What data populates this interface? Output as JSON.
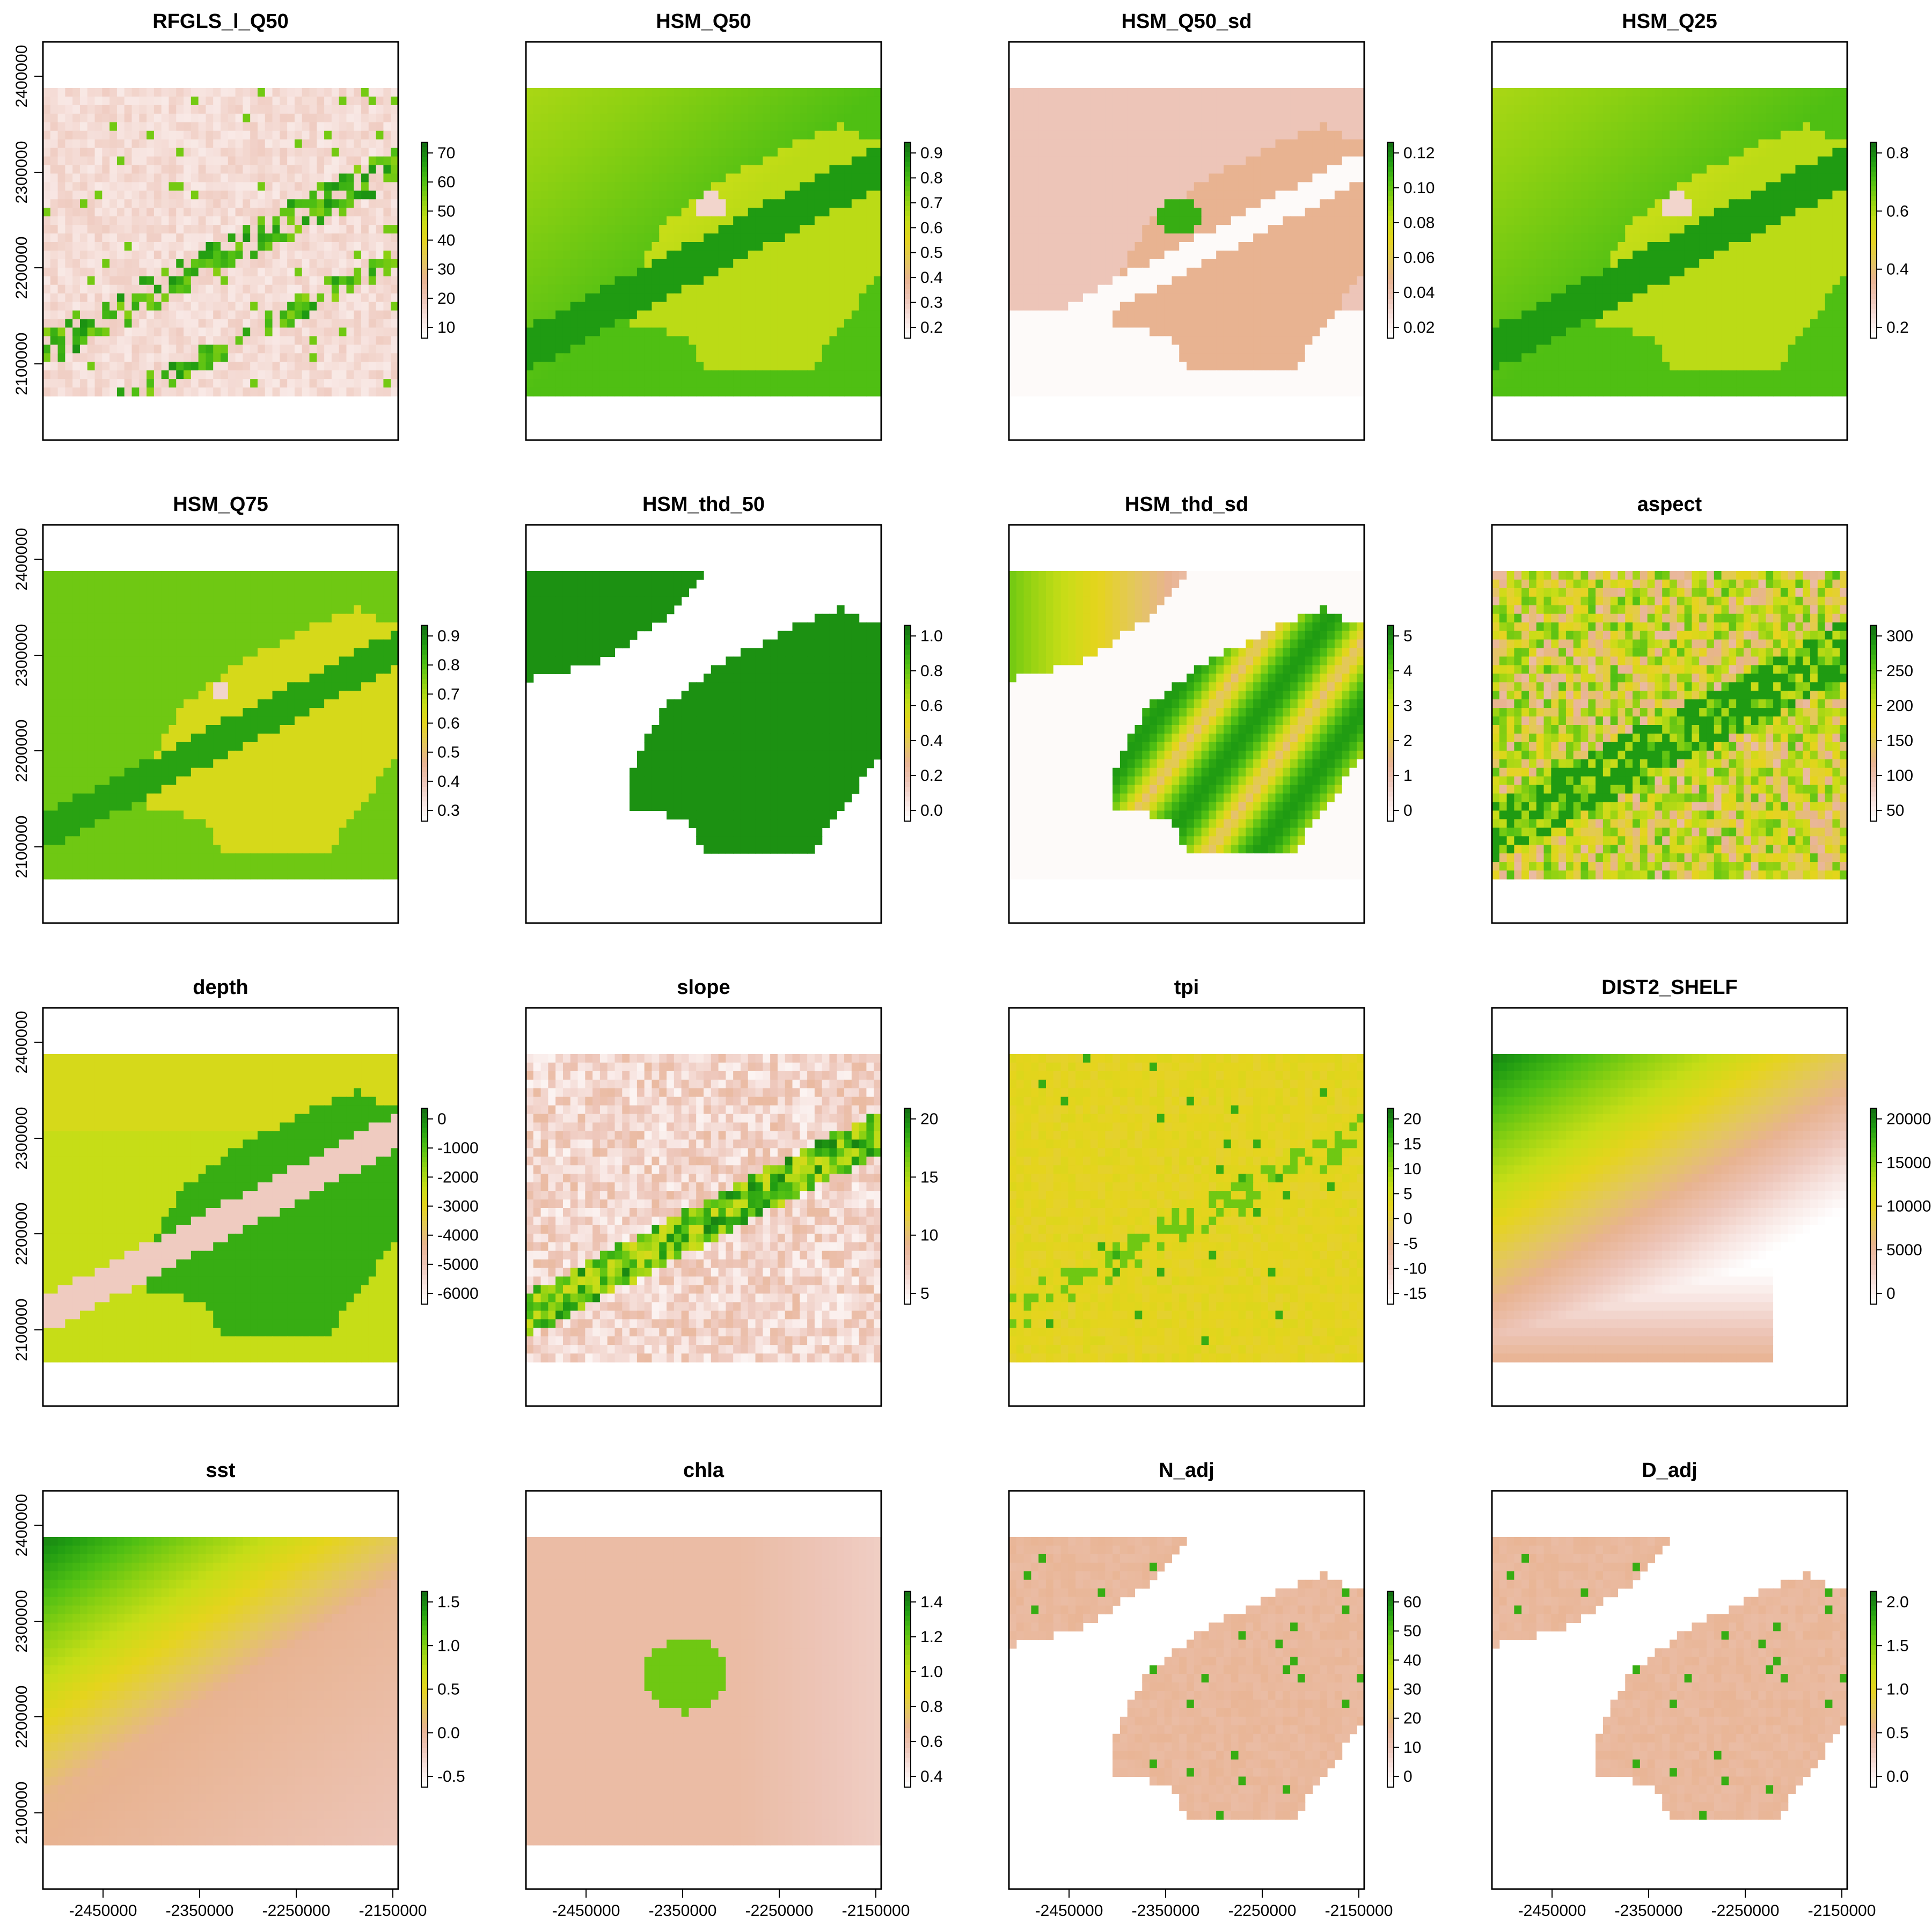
{
  "colors": {
    "ramp": [
      "#ffffff",
      "#f7e4e0",
      "#edc5b8",
      "#e8b391",
      "#e3c85a",
      "#e5d41d",
      "#c6dd17",
      "#8fd112",
      "#4fbf13",
      "#1f9b12",
      "#126b12"
    ],
    "na": "#ffffff",
    "frame": "#000000"
  },
  "axes": {
    "x_ticks": [
      "-2450000",
      "-2350000",
      "-2250000",
      "-2150000"
    ],
    "y_ticks": [
      "2100000",
      "2200000",
      "2300000",
      "2400000"
    ]
  },
  "chart_data": [
    {
      "type": "heatmap",
      "title": "RFGLS_l_Q50",
      "legend_ticks": [
        "10",
        "20",
        "30",
        "40",
        "50",
        "60",
        "70"
      ],
      "pattern": "sparse-ridge"
    },
    {
      "type": "heatmap",
      "title": "HSM_Q50",
      "legend_ticks": [
        "0.2",
        "0.3",
        "0.4",
        "0.5",
        "0.6",
        "0.7",
        "0.8",
        "0.9"
      ],
      "pattern": "smooth-habitat"
    },
    {
      "type": "heatmap",
      "title": "HSM_Q50_sd",
      "legend_ticks": [
        "0.02",
        "0.04",
        "0.06",
        "0.08",
        "0.10",
        "0.12"
      ],
      "pattern": "sd-habitat"
    },
    {
      "type": "heatmap",
      "title": "HSM_Q25",
      "legend_ticks": [
        "0.2",
        "0.4",
        "0.6",
        "0.8"
      ],
      "pattern": "smooth-habitat"
    },
    {
      "type": "heatmap",
      "title": "HSM_Q75",
      "legend_ticks": [
        "0.3",
        "0.4",
        "0.5",
        "0.6",
        "0.7",
        "0.8",
        "0.9"
      ],
      "pattern": "smooth-habitat-high"
    },
    {
      "type": "heatmap",
      "title": "HSM_thd_50",
      "legend_ticks": [
        "0.0",
        "0.2",
        "0.4",
        "0.6",
        "0.8",
        "1.0"
      ],
      "pattern": "binary-mask"
    },
    {
      "type": "heatmap",
      "title": "HSM_thd_sd",
      "legend_ticks": [
        "0",
        "1",
        "2",
        "3",
        "4",
        "5"
      ],
      "pattern": "masked-sd"
    },
    {
      "type": "heatmap",
      "title": "aspect",
      "legend_ticks": [
        "50",
        "100",
        "150",
        "200",
        "250",
        "300"
      ],
      "pattern": "noisy-ridge"
    },
    {
      "type": "heatmap",
      "title": "depth",
      "legend_ticks": [
        "0",
        "-1000",
        "-2000",
        "-3000",
        "-4000",
        "-5000",
        "-6000"
      ],
      "pattern": "depth-basin"
    },
    {
      "type": "heatmap",
      "title": "slope",
      "legend_ticks": [
        "5",
        "10",
        "15",
        "20"
      ],
      "pattern": "slope-ridge"
    },
    {
      "type": "heatmap",
      "title": "tpi",
      "legend_ticks": [
        "20",
        "15",
        "10",
        "5",
        "0",
        "-5",
        "-10",
        "-15"
      ],
      "pattern": "tpi-flat"
    },
    {
      "type": "heatmap",
      "title": "DIST2_SHELF",
      "legend_ticks": [
        "20000",
        "15000",
        "10000",
        "5000",
        "0"
      ],
      "pattern": "distance-gradient"
    },
    {
      "type": "heatmap",
      "title": "sst",
      "legend_ticks": [
        "1.5",
        "1.0",
        "0.5",
        "0.0",
        "-0.5"
      ],
      "pattern": "sst-gradient"
    },
    {
      "type": "heatmap",
      "title": "chla",
      "legend_ticks": [
        "1.4",
        "1.2",
        "1.0",
        "0.8",
        "0.6",
        "0.4"
      ],
      "pattern": "chla-patch"
    },
    {
      "type": "heatmap",
      "title": "N_adj",
      "legend_ticks": [
        "60",
        "50",
        "40",
        "30",
        "20",
        "10",
        "0"
      ],
      "pattern": "masked-sparse"
    },
    {
      "type": "heatmap",
      "title": "D_adj",
      "legend_ticks": [
        "2.0",
        "1.5",
        "1.0",
        "0.5",
        "0.0"
      ],
      "pattern": "masked-sparse"
    }
  ]
}
